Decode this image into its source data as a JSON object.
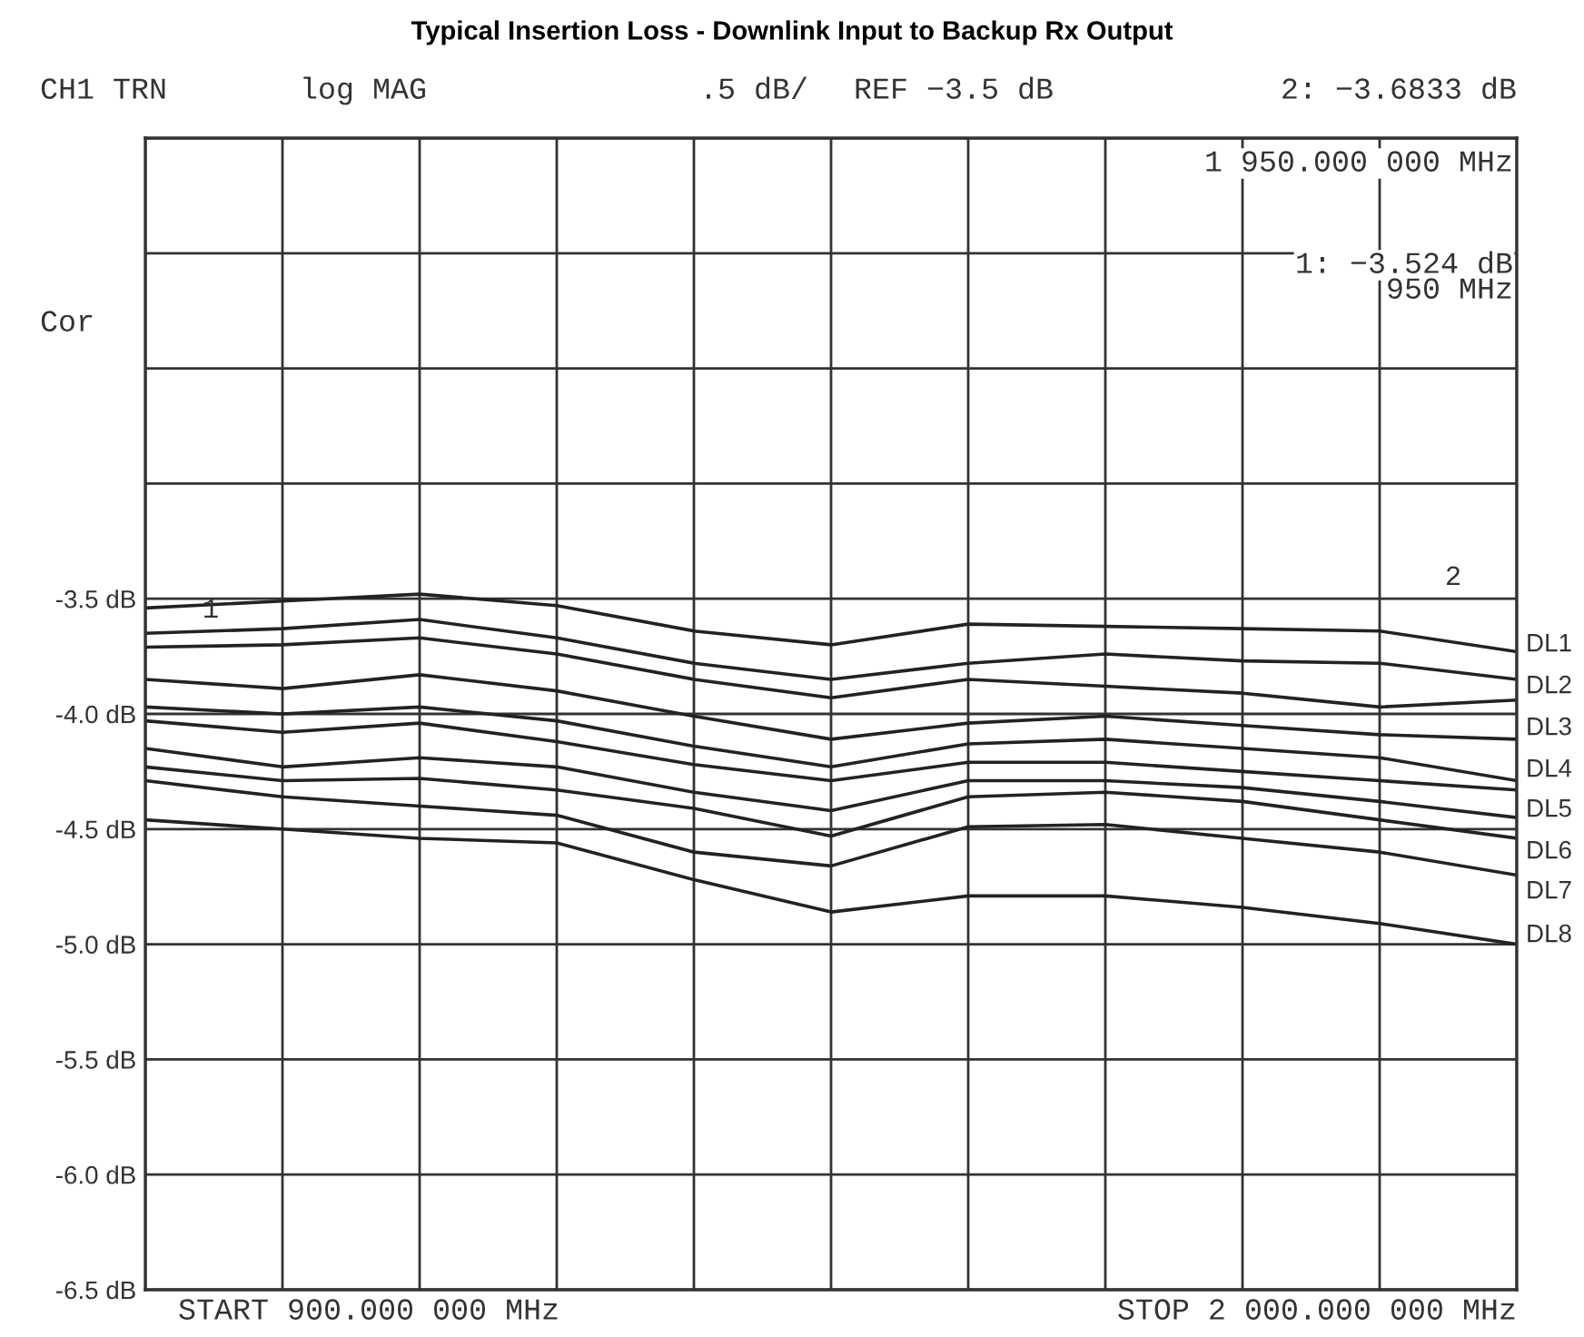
{
  "chart_data": {
    "type": "line",
    "title": "Typical Insertion Loss - Downlink Input to Backup Rx Output",
    "categories": [
      null,
      null,
      null,
      null,
      null,
      null,
      null,
      null,
      null,
      null,
      null
    ],
    "series": [
      {
        "color": "#222222",
        "values": [
          -3.54,
          -3.51,
          -3.48,
          -3.53,
          -3.64,
          -3.7,
          -3.61,
          -3.62,
          -3.63,
          -3.64,
          -3.73
        ]
      },
      {
        "color": "#222222",
        "values": [
          -3.65,
          -3.63,
          -3.59,
          -3.67,
          -3.78,
          -3.85,
          -3.78,
          -3.74,
          -3.77,
          -3.78,
          -3.85
        ]
      },
      {
        "color": "#222222",
        "values": [
          -3.71,
          -3.7,
          -3.67,
          -3.74,
          -3.85,
          -3.93,
          -3.85,
          -3.88,
          -3.91,
          -3.97,
          -3.94
        ]
      },
      {
        "color": "#222222",
        "values": [
          -3.85,
          -3.89,
          -3.83,
          -3.9,
          -4.01,
          -4.11,
          -4.04,
          -4.01,
          -4.05,
          -4.09,
          -4.11
        ]
      },
      {
        "color": "#222222",
        "values": [
          -3.97,
          -4.0,
          -3.97,
          -4.03,
          -4.14,
          -4.23,
          -4.13,
          -4.11,
          -4.15,
          -4.19,
          -4.29
        ]
      },
      {
        "color": "#222222",
        "values": [
          -4.03,
          -4.08,
          -4.04,
          -4.12,
          -4.22,
          -4.29,
          -4.21,
          -4.21,
          -4.25,
          -4.29,
          -4.33
        ]
      },
      {
        "color": "#222222",
        "values": [
          -4.15,
          -4.23,
          -4.19,
          -4.23,
          -4.34,
          -4.42,
          -4.29,
          -4.29,
          -4.32,
          -4.38,
          -4.45
        ]
      },
      {
        "color": "#222222",
        "values": [
          -4.23,
          -4.29,
          -4.28,
          -4.33,
          -4.41,
          -4.53,
          -4.36,
          -4.34,
          -4.38,
          -4.46,
          -4.54
        ]
      },
      {
        "color": "#222222",
        "values": [
          -4.29,
          -4.36,
          -4.4,
          -4.44,
          -4.6,
          -4.66,
          -4.49,
          -4.48,
          -4.54,
          -4.6,
          -4.7
        ]
      },
      {
        "color": "#222222",
        "values": [
          -4.46,
          -4.5,
          -4.54,
          -4.56,
          -4.72,
          -4.86,
          -4.79,
          -4.79,
          -4.84,
          -4.91,
          -5.0
        ]
      }
    ],
    "ylim": [
      -6.5,
      -1.5
    ],
    "yticks": [
      {
        "value": -6.5,
        "label": "-6.5 dB"
      },
      {
        "value": -6.0,
        "label": "-6.0 dB"
      },
      {
        "value": -5.5,
        "label": "-5.5 dB"
      },
      {
        "value": -5.0,
        "label": "-5.0 dB"
      },
      {
        "value": -4.5,
        "label": "-4.5 dB"
      },
      {
        "value": -4.0,
        "label": "-4.0 dB"
      },
      {
        "value": -3.5,
        "label": "-3.5 dB"
      },
      {
        "value": -3.0,
        "label": null
      },
      {
        "value": -2.5,
        "label": null
      },
      {
        "value": -2.0,
        "label": null
      },
      {
        "value": -1.5,
        "label": null
      }
    ],
    "grid": true,
    "line_style": "solid",
    "annotations": [
      "CH1 TRN",
      "log MAG",
      ".5 dB/",
      "REF −3.5 dB",
      "2: −3.6833 dB",
      "1 950.000 000 MHz",
      "1: −3.524 dB",
      "950 MHz",
      "Cor",
      "START 900.000 000 MHz",
      "STOP 2 000.000 000 MHz",
      "DL1",
      "DL2",
      "DL3",
      "DL4",
      "DL5",
      "DL6",
      "DL7",
      "DL8",
      "1",
      "2"
    ]
  }
}
